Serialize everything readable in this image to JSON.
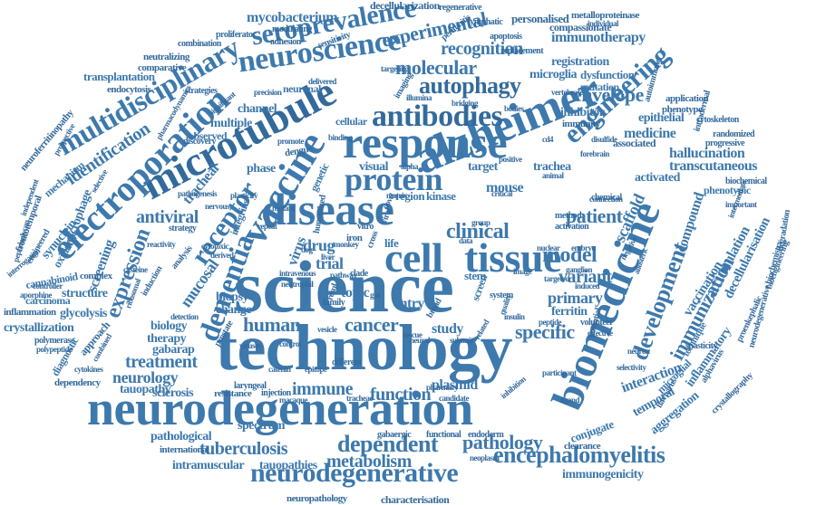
{
  "color": "#3d79ad",
  "background": "#ffffff",
  "words": [
    {
      "text": "science"
    },
    {
      "text": "technology"
    },
    {
      "text": "neurodegeneration"
    },
    {
      "text": "response"
    },
    {
      "text": "disease"
    },
    {
      "text": "alzheimer"
    },
    {
      "text": "vaccine"
    },
    {
      "text": "microtubule"
    },
    {
      "text": "electroporation"
    },
    {
      "text": "biomedicine"
    },
    {
      "text": "cell"
    },
    {
      "text": "tissue"
    },
    {
      "text": "antibodies"
    },
    {
      "text": "neuroscience"
    },
    {
      "text": "protein"
    },
    {
      "text": "seroprevalence"
    },
    {
      "text": "multidisciplinary"
    },
    {
      "text": "engineering"
    },
    {
      "text": "neurodegenerative"
    },
    {
      "text": "encephalomyelitis"
    },
    {
      "text": "dementia"
    },
    {
      "text": "receptor"
    },
    {
      "text": "autophagy"
    },
    {
      "text": "molecular"
    },
    {
      "text": "experimental"
    },
    {
      "text": "clinical"
    },
    {
      "text": "development"
    },
    {
      "text": "immunization"
    },
    {
      "text": "dependent"
    },
    {
      "text": "pathology"
    },
    {
      "text": "metabolism"
    },
    {
      "text": "tuberculosis"
    },
    {
      "text": "cancer"
    },
    {
      "text": "human"
    },
    {
      "text": "specific"
    },
    {
      "text": "model"
    },
    {
      "text": "expression"
    },
    {
      "text": "identification"
    },
    {
      "text": "antiviral"
    },
    {
      "text": "treatment"
    },
    {
      "text": "neurology"
    },
    {
      "text": "immune"
    },
    {
      "text": "function"
    },
    {
      "text": "envelope"
    },
    {
      "text": "patient"
    },
    {
      "text": "recognition"
    },
    {
      "text": "immunotherapy"
    },
    {
      "text": "mycobacterium"
    },
    {
      "text": "decellularization"
    },
    {
      "text": "personalised"
    },
    {
      "text": "metalloproteinase"
    },
    {
      "text": "compassionate"
    },
    {
      "text": "registration"
    },
    {
      "text": "microglia"
    },
    {
      "text": "dysfunction"
    },
    {
      "text": "mutation"
    },
    {
      "text": "inhibitor"
    },
    {
      "text": "immunity"
    },
    {
      "text": "epithelial"
    },
    {
      "text": "medicine"
    },
    {
      "text": "associated"
    },
    {
      "text": "hallucination"
    },
    {
      "text": "transcutaneous"
    },
    {
      "text": "activated"
    },
    {
      "text": "phenotypic"
    },
    {
      "text": "compound"
    },
    {
      "text": "accumulation"
    },
    {
      "text": "vaccination"
    },
    {
      "text": "decellularisation"
    },
    {
      "text": "variant"
    },
    {
      "text": "primary"
    },
    {
      "text": "ferritin"
    },
    {
      "text": "scaffold"
    },
    {
      "text": "interaction"
    },
    {
      "text": "temporal"
    },
    {
      "text": "aggregation"
    },
    {
      "text": "inflammatory"
    },
    {
      "text": "microglial"
    },
    {
      "text": "conjugate"
    },
    {
      "text": "mouse"
    },
    {
      "text": "trachea"
    },
    {
      "text": "visual"
    },
    {
      "text": "target"
    },
    {
      "text": "drug"
    },
    {
      "text": "trial"
    },
    {
      "text": "topic"
    },
    {
      "text": "entry"
    },
    {
      "text": "study"
    },
    {
      "text": "plasmid"
    },
    {
      "text": "virus"
    },
    {
      "text": "mucosal"
    },
    {
      "text": "biopsy"
    },
    {
      "text": "change"
    },
    {
      "text": "biology"
    },
    {
      "text": "therapy"
    },
    {
      "text": "gabarap"
    },
    {
      "text": "sclerosis"
    },
    {
      "text": "tauopathy"
    },
    {
      "text": "structure"
    },
    {
      "text": "screening"
    },
    {
      "text": "glycolysis"
    },
    {
      "text": "crystallization"
    },
    {
      "text": "macrophage"
    },
    {
      "text": "synuclein"
    },
    {
      "text": "channel"
    },
    {
      "text": "multiple"
    },
    {
      "text": "observed"
    },
    {
      "text": "phase"
    },
    {
      "text": "spectrum"
    },
    {
      "text": "pathological"
    },
    {
      "text": "intramuscular"
    },
    {
      "text": "tauopathies"
    },
    {
      "text": "immunogenicity"
    },
    {
      "text": "neuropathology"
    },
    {
      "text": "characterisation"
    },
    {
      "text": "tracheal"
    },
    {
      "text": "integrins"
    },
    {
      "text": "genetic"
    },
    {
      "text": "kinase"
    },
    {
      "text": "region"
    },
    {
      "text": "transplantation"
    },
    {
      "text": "endocytosis"
    },
    {
      "text": "neutralizing"
    },
    {
      "text": "comparative"
    },
    {
      "text": "combination"
    },
    {
      "text": "proliferator"
    },
    {
      "text": "neuroferritinopathy"
    },
    {
      "text": "mechanism"
    },
    {
      "text": "frontotemporal"
    },
    {
      "text": "oxidative"
    },
    {
      "text": "cannabinoid"
    },
    {
      "text": "carcinoma"
    },
    {
      "text": "inflammation"
    },
    {
      "text": "polymerase"
    },
    {
      "text": "diagnostic"
    },
    {
      "text": "dependency"
    },
    {
      "text": "resistance"
    },
    {
      "text": "international"
    },
    {
      "text": "clearance"
    },
    {
      "text": "neurodegeneration"
    },
    {
      "text": "life"
    },
    {
      "text": "stem"
    },
    {
      "text": "screen"
    },
    {
      "text": "cellular"
    },
    {
      "text": "neuronal"
    },
    {
      "text": "modulating"
    },
    {
      "text": "adhesion"
    },
    {
      "text": "sensitivity"
    },
    {
      "text": "apoptosis"
    },
    {
      "text": "regenerative"
    },
    {
      "text": "lymphatic"
    },
    {
      "text": "peritonitis"
    },
    {
      "text": "cytoskeleton"
    },
    {
      "text": "application"
    },
    {
      "text": "phenotype"
    },
    {
      "text": "randomized"
    },
    {
      "text": "progressive"
    },
    {
      "text": "biochemical"
    },
    {
      "text": "autoimmune"
    },
    {
      "text": "intradermal"
    },
    {
      "text": "technique"
    },
    {
      "text": "proenkephalic"
    },
    {
      "text": "bioengineering"
    },
    {
      "text": "crystallography"
    },
    {
      "text": "spasticity"
    },
    {
      "text": "volunteer"
    },
    {
      "text": "potential"
    },
    {
      "text": "method"
    },
    {
      "text": "activation"
    },
    {
      "text": "gabaergic"
    },
    {
      "text": "functional"
    },
    {
      "text": "endoderm"
    },
    {
      "text": "neoplasm"
    },
    {
      "text": "pharmacy"
    },
    {
      "text": "candidate"
    },
    {
      "text": "injection"
    },
    {
      "text": "macaque"
    },
    {
      "text": "laryngeal"
    },
    {
      "text": "catenin"
    },
    {
      "text": "epitope"
    },
    {
      "text": "different"
    },
    {
      "text": "imaging"
    },
    {
      "text": "strategies"
    },
    {
      "text": "replacement"
    },
    {
      "text": "dengue"
    },
    {
      "text": "forebrain"
    },
    {
      "text": "peptidoglycan"
    },
    {
      "text": "prospective"
    },
    {
      "text": "engineered"
    },
    {
      "text": "aporphine"
    },
    {
      "text": "complex"
    },
    {
      "text": "approach"
    },
    {
      "text": "induction"
    },
    {
      "text": "analysis"
    },
    {
      "text": "strategy"
    },
    {
      "text": "degradation"
    },
    {
      "text": "cytokines"
    },
    {
      "text": "participant"
    },
    {
      "text": "selectivity"
    },
    {
      "text": "chemical"
    },
    {
      "text": "individual"
    },
    {
      "text": "vertebrate"
    },
    {
      "text": "bridging"
    },
    {
      "text": "targeting"
    },
    {
      "text": "delivered"
    },
    {
      "text": "precision"
    },
    {
      "text": "significant"
    },
    {
      "text": "discovery"
    },
    {
      "text": "mutant"
    },
    {
      "text": "matrix"
    },
    {
      "text": "data"
    },
    {
      "text": "group"
    },
    {
      "text": "clade"
    },
    {
      "text": "cross"
    },
    {
      "text": "broad"
    },
    {
      "text": "viral"
    },
    {
      "text": "iron"
    },
    {
      "text": "vitro"
    },
    {
      "text": "novel"
    },
    {
      "text": "humanized"
    },
    {
      "text": "repeat"
    },
    {
      "text": "positive"
    },
    {
      "text": "critical"
    },
    {
      "text": "quality"
    },
    {
      "text": "system"
    },
    {
      "text": "targeted"
    },
    {
      "text": "induced"
    },
    {
      "text": "bodies"
    },
    {
      "text": "illumina"
    },
    {
      "text": "promote"
    },
    {
      "text": "binding"
    },
    {
      "text": "alpha"
    },
    {
      "text": "nuclear"
    },
    {
      "text": "embryo"
    },
    {
      "text": "ganglion"
    },
    {
      "text": "related"
    },
    {
      "text": "control"
    },
    {
      "text": "neural"
    },
    {
      "text": "subunit"
    },
    {
      "text": "effective"
    },
    {
      "text": "insulin"
    },
    {
      "text": "prostate"
    },
    {
      "text": "derived"
    },
    {
      "text": "reactivity"
    },
    {
      "text": "plasticity"
    },
    {
      "text": "nervous"
    },
    {
      "text": "detection"
    },
    {
      "text": "controller"
    },
    {
      "text": "combined"
    },
    {
      "text": "polypeptide"
    },
    {
      "text": "ribosomal"
    },
    {
      "text": "intravenous"
    },
    {
      "text": "neutrophil"
    },
    {
      "text": "family"
    },
    {
      "text": "resul"
    },
    {
      "text": "image"
    },
    {
      "text": "rescue"
    },
    {
      "text": "vesicle"
    },
    {
      "text": "disulfide"
    },
    {
      "text": "intermediate"
    },
    {
      "text": "important"
    },
    {
      "text": "animal"
    },
    {
      "text": "inhibition"
    },
    {
      "text": "neurodegenerative biochemistry"
    },
    {
      "text": "alphavirus"
    },
    {
      "text": "flavivirus"
    },
    {
      "text": "ligand"
    },
    {
      "text": "connection"
    },
    {
      "text": "negative"
    },
    {
      "text": "allosteric"
    },
    {
      "text": "peptide"
    },
    {
      "text": "viruses"
    },
    {
      "text": "liver"
    },
    {
      "text": "cd4"
    },
    {
      "text": "cytotoxic"
    },
    {
      "text": "cysteine"
    },
    {
      "text": "tracheae"
    },
    {
      "text": "pathway"
    },
    {
      "text": "gut"
    },
    {
      "text": "dog"
    },
    {
      "text": "monkey"
    },
    {
      "text": "neuron"
    },
    {
      "text": "pathogenesis"
    },
    {
      "text": "selective"
    },
    {
      "text": "independent"
    },
    {
      "text": "interrogation"
    },
    {
      "text": "pharmacodynamics"
    },
    {
      "text": "parkinson"
    }
  ]
}
